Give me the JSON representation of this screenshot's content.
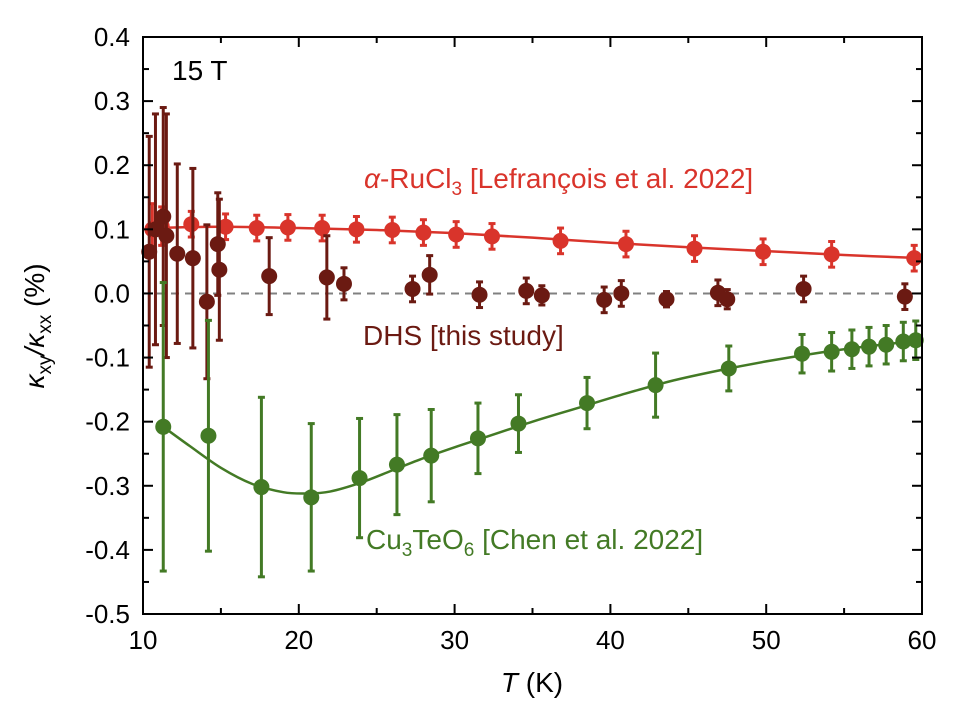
{
  "chart_data": {
    "type": "scatter",
    "field_label": "15 T",
    "xlabel": {
      "var": "T",
      "unit": " (K)"
    },
    "ylabel": {
      "pre": "κ",
      "sub1": "xy",
      "mid": "/κ",
      "sub2": "xx",
      "post": " (%)"
    },
    "xlim": [
      10,
      60
    ],
    "ylim": [
      -0.5,
      0.4
    ],
    "x_ticks": [
      "10",
      "20",
      "30",
      "40",
      "50",
      "60"
    ],
    "x_tick_values": [
      10,
      20,
      30,
      40,
      50,
      60
    ],
    "y_ticks": [
      "-0.5",
      "-0.4",
      "-0.3",
      "-0.2",
      "-0.1",
      "0.0",
      "0.1",
      "0.2",
      "0.3",
      "0.4"
    ],
    "y_tick_values": [
      -0.5,
      -0.4,
      -0.3,
      -0.2,
      -0.1,
      0.0,
      0.1,
      0.2,
      0.3,
      0.4
    ],
    "zero_line": true,
    "grid": false,
    "series": [
      {
        "key": "rucl3",
        "color": "#d9342b",
        "label_parts": {
          "greek": "α",
          "rest1": "-RuCl",
          "sub": "3",
          "rest2": " [Lefrançois et al. 2022]"
        },
        "x": [
          10.6,
          11.2,
          13.1,
          15.3,
          17.3,
          19.3,
          21.5,
          23.7,
          26.0,
          28.0,
          30.1,
          32.4,
          36.8,
          41.0,
          45.4,
          49.8,
          54.2,
          59.5
        ],
        "y": [
          0.1,
          0.105,
          0.108,
          0.104,
          0.102,
          0.103,
          0.102,
          0.1,
          0.099,
          0.095,
          0.092,
          0.089,
          0.082,
          0.077,
          0.07,
          0.065,
          0.061,
          0.055
        ],
        "err": [
          0.04,
          0.03,
          0.02,
          0.02,
          0.02,
          0.02,
          0.02,
          0.02,
          0.02,
          0.02,
          0.02,
          0.02,
          0.02,
          0.02,
          0.02,
          0.02,
          0.02,
          0.02
        ],
        "fit_x": [
          10.6,
          15,
          20,
          25,
          30,
          35,
          40,
          45,
          50,
          55,
          60
        ],
        "fit_y": [
          0.102,
          0.104,
          0.102,
          0.099,
          0.094,
          0.087,
          0.079,
          0.072,
          0.066,
          0.06,
          0.055
        ]
      },
      {
        "key": "dhs",
        "color": "#6b1a12",
        "label_parts": {
          "text": "DHS [this study]"
        },
        "x": [
          10.4,
          10.8,
          11.3,
          11.5,
          12.2,
          13.2,
          14.1,
          14.8,
          14.9,
          18.1,
          21.8,
          22.9,
          27.3,
          28.4,
          31.6,
          34.6,
          35.6,
          39.6,
          40.7,
          43.6,
          46.9,
          47.5,
          52.4,
          58.9
        ],
        "y": [
          0.065,
          0.1,
          0.12,
          0.09,
          0.062,
          0.055,
          -0.013,
          0.077,
          0.037,
          0.027,
          0.025,
          0.015,
          0.007,
          0.029,
          -0.002,
          0.004,
          -0.003,
          -0.01,
          0.0,
          -0.009,
          0.001,
          -0.009,
          0.007,
          -0.005
        ],
        "err": [
          0.18,
          0.18,
          0.17,
          0.19,
          0.14,
          0.14,
          0.12,
          0.08,
          0.11,
          0.06,
          0.065,
          0.025,
          0.02,
          0.03,
          0.02,
          0.02,
          0.015,
          0.02,
          0.02,
          0.012,
          0.02,
          0.015,
          0.02,
          0.02
        ]
      },
      {
        "key": "cu3teo6",
        "color": "#437a25",
        "label_parts": {
          "a": "Cu",
          "s1": "3",
          "b": "TeO",
          "s2": "6",
          "c": " [Chen et al. 2022]"
        },
        "x": [
          11.3,
          14.2,
          17.6,
          20.8,
          23.9,
          26.3,
          28.5,
          31.5,
          34.1,
          38.5,
          42.9,
          47.6,
          52.3,
          54.2,
          55.5,
          56.6,
          57.7,
          58.8,
          59.6
        ],
        "y": [
          -0.208,
          -0.222,
          -0.302,
          -0.318,
          -0.288,
          -0.267,
          -0.253,
          -0.226,
          -0.203,
          -0.171,
          -0.143,
          -0.117,
          -0.094,
          -0.091,
          -0.087,
          -0.083,
          -0.08,
          -0.075,
          -0.073
        ],
        "err": [
          0.225,
          0.18,
          0.14,
          0.115,
          0.093,
          0.078,
          0.072,
          0.055,
          0.045,
          0.04,
          0.05,
          0.035,
          0.03,
          0.03,
          0.03,
          0.03,
          0.03,
          0.03,
          0.03
        ],
        "fit_x": [
          11.3,
          13,
          15,
          17,
          19,
          20.5,
          22,
          24,
          26,
          28,
          30,
          32,
          35,
          38,
          41,
          44,
          47,
          50,
          53,
          56,
          59.6
        ],
        "fit_y": [
          -0.208,
          -0.238,
          -0.272,
          -0.297,
          -0.31,
          -0.312,
          -0.309,
          -0.295,
          -0.276,
          -0.257,
          -0.24,
          -0.224,
          -0.2,
          -0.178,
          -0.156,
          -0.136,
          -0.12,
          -0.106,
          -0.094,
          -0.084,
          -0.074
        ]
      }
    ]
  }
}
